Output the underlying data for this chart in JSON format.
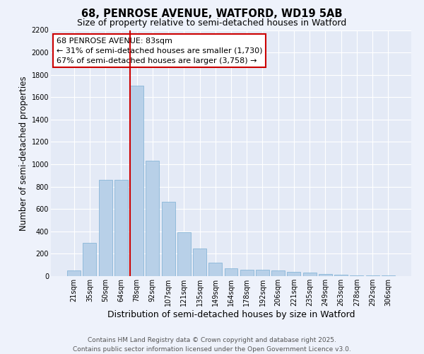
{
  "title": "68, PENROSE AVENUE, WATFORD, WD19 5AB",
  "subtitle": "Size of property relative to semi-detached houses in Watford",
  "xlabel": "Distribution of semi-detached houses by size in Watford",
  "ylabel": "Number of semi-detached properties",
  "categories": [
    "21sqm",
    "35sqm",
    "50sqm",
    "64sqm",
    "78sqm",
    "92sqm",
    "107sqm",
    "121sqm",
    "135sqm",
    "149sqm",
    "164sqm",
    "178sqm",
    "192sqm",
    "206sqm",
    "221sqm",
    "235sqm",
    "249sqm",
    "263sqm",
    "278sqm",
    "292sqm",
    "306sqm"
  ],
  "values": [
    50,
    300,
    860,
    860,
    1700,
    1035,
    665,
    390,
    245,
    120,
    70,
    60,
    55,
    50,
    40,
    30,
    20,
    10,
    5,
    5,
    5
  ],
  "bar_color": "#b8d0e8",
  "bar_edge_color": "#7aafd4",
  "ylim": [
    0,
    2200
  ],
  "yticks": [
    0,
    200,
    400,
    600,
    800,
    1000,
    1200,
    1400,
    1600,
    1800,
    2000,
    2200
  ],
  "property_label": "68 PENROSE AVENUE: 83sqm",
  "annotation_line1": "← 31% of semi-detached houses are smaller (1,730)",
  "annotation_line2": "67% of semi-detached houses are larger (3,758) →",
  "red_line_color": "#cc0000",
  "box_edge_color": "#cc0000",
  "background_color": "#eef2fb",
  "plot_bg_color": "#e4eaf6",
  "footer_line1": "Contains HM Land Registry data © Crown copyright and database right 2025.",
  "footer_line2": "Contains public sector information licensed under the Open Government Licence v3.0.",
  "title_fontsize": 10.5,
  "subtitle_fontsize": 9,
  "axis_label_fontsize": 8.5,
  "tick_fontsize": 7,
  "annotation_fontsize": 8,
  "footer_fontsize": 6.5,
  "red_line_x": 3.57
}
